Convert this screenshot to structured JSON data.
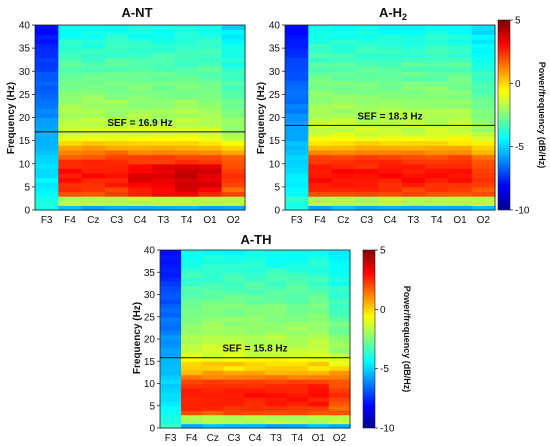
{
  "chart_data": [
    {
      "type": "heatmap",
      "title": "A-NT",
      "title_sub": "",
      "ylabel": "Frequency (Hz)",
      "categories": [
        "F3",
        "F4",
        "Cz",
        "C3",
        "C4",
        "T3",
        "T4",
        "O1",
        "O2"
      ],
      "ylim": [
        0,
        40
      ],
      "yticks": [
        0,
        5,
        10,
        15,
        20,
        25,
        30,
        35,
        40
      ],
      "sef_value": 16.9,
      "sef_label": "SEF = 16.9 Hz",
      "hot_rows": [
        [
          0.2,
          0.4,
          0.5,
          0.5,
          0.6,
          0.6,
          0.5,
          0.5,
          0.4
        ],
        [
          0.3,
          0.7,
          0.8,
          0.7,
          0.9,
          1.0,
          1.1,
          0.8,
          0.6
        ]
      ],
      "colorbar": false
    },
    {
      "type": "heatmap",
      "title": "A-H",
      "title_sub": "2",
      "ylabel": "Frequency (Hz)",
      "categories": [
        "F3",
        "F4",
        "Cz",
        "C3",
        "C4",
        "T3",
        "T4",
        "O1",
        "O2"
      ],
      "ylim": [
        0,
        40
      ],
      "yticks": [
        0,
        5,
        10,
        15,
        20,
        25,
        30,
        35,
        40
      ],
      "sef_value": 18.3,
      "sef_label": "SEF = 18.3 Hz",
      "colorbar": true,
      "colorbar_label": "Power/frequency (dB/Hz)",
      "colorbar_ticks": [
        5,
        0,
        -5,
        -10
      ],
      "clim": [
        -10,
        5
      ]
    },
    {
      "type": "heatmap",
      "title": "A-TH",
      "title_sub": "",
      "ylabel": "Frequency (Hz)",
      "categories": [
        "F3",
        "F4",
        "Cz",
        "C3",
        "C4",
        "T3",
        "T4",
        "O1",
        "O2"
      ],
      "ylim": [
        0,
        40
      ],
      "yticks": [
        0,
        5,
        10,
        15,
        20,
        25,
        30,
        35,
        40
      ],
      "sef_value": 15.8,
      "sef_label": "SEF = 15.8 Hz",
      "colorbar": true,
      "colorbar_label": "Power/frequency (dB/Hz)",
      "colorbar_ticks": [
        5,
        0,
        -5,
        -10
      ],
      "clim": [
        -10,
        5
      ]
    }
  ]
}
